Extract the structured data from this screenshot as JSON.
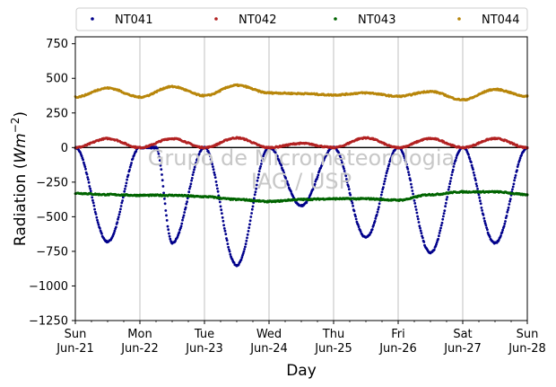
{
  "chart_data": {
    "type": "scatter",
    "xlabel": "Day",
    "ylabel": "Radiation",
    "ylabel_unit_base": "Wm",
    "ylabel_unit_exp": "−2",
    "ylim": [
      -1250,
      800
    ],
    "yticks": [
      -1250,
      -1000,
      -750,
      -500,
      -250,
      0,
      250,
      500,
      750
    ],
    "ytick_labels": [
      "−1250",
      "−1000",
      "−750",
      "−500",
      "−250",
      "0",
      "250",
      "500",
      "750"
    ],
    "xlim": [
      "2020-06-21",
      "2020-06-28"
    ],
    "xticks": [
      {
        "day": "Sun",
        "date": "Jun-21"
      },
      {
        "day": "Mon",
        "date": "Jun-22"
      },
      {
        "day": "Tue",
        "date": "Jun-23"
      },
      {
        "day": "Wed",
        "date": "Jun-24"
      },
      {
        "day": "Thu",
        "date": "Jun-25"
      },
      {
        "day": "Fri",
        "date": "Jun-26"
      },
      {
        "day": "Sat",
        "date": "Jun-27"
      },
      {
        "day": "Sun",
        "date": "Jun-28"
      }
    ],
    "grid": "vertical-major",
    "legend_position": "top",
    "zero_line": true,
    "series": [
      {
        "name": "NT041",
        "color": "#00008b",
        "sample_x_days": [
          0.0,
          0.5,
          1.0,
          1.25,
          1.5,
          2.0,
          2.5,
          3.0,
          3.5,
          4.0,
          4.5,
          5.0,
          5.5,
          6.0,
          6.5,
          7.0
        ],
        "sample_values": [
          0,
          -680,
          0,
          0,
          -690,
          0,
          -850,
          0,
          -420,
          0,
          -650,
          0,
          -760,
          0,
          -690,
          0
        ]
      },
      {
        "name": "NT042",
        "color": "#b22222",
        "sample_x_days": [
          0.0,
          0.5,
          1.0,
          1.5,
          2.0,
          2.5,
          3.0,
          3.5,
          4.0,
          4.5,
          5.0,
          5.5,
          6.0,
          6.5,
          7.0
        ],
        "sample_values": [
          0,
          65,
          0,
          65,
          0,
          70,
          0,
          30,
          0,
          70,
          0,
          65,
          0,
          65,
          0
        ]
      },
      {
        "name": "NT043",
        "color": "#006400",
        "sample_x_days": [
          0.0,
          0.5,
          1.0,
          1.5,
          2.0,
          2.5,
          3.0,
          3.5,
          4.0,
          4.5,
          5.0,
          5.5,
          6.0,
          6.5,
          7.0
        ],
        "sample_values": [
          -330,
          -340,
          -345,
          -345,
          -355,
          -375,
          -390,
          -375,
          -370,
          -370,
          -380,
          -340,
          -320,
          -320,
          -340
        ]
      },
      {
        "name": "NT044",
        "color": "#b8860b",
        "sample_x_days": [
          0.0,
          0.5,
          1.0,
          1.5,
          2.0,
          2.5,
          3.0,
          3.5,
          4.0,
          4.5,
          5.0,
          5.5,
          6.0,
          6.5,
          7.0
        ],
        "sample_values": [
          365,
          430,
          365,
          440,
          375,
          450,
          395,
          390,
          380,
          395,
          370,
          405,
          345,
          420,
          370
        ]
      }
    ],
    "watermark_lines": [
      "Grupo de Micrometeorologia",
      "IAG / USP"
    ]
  }
}
